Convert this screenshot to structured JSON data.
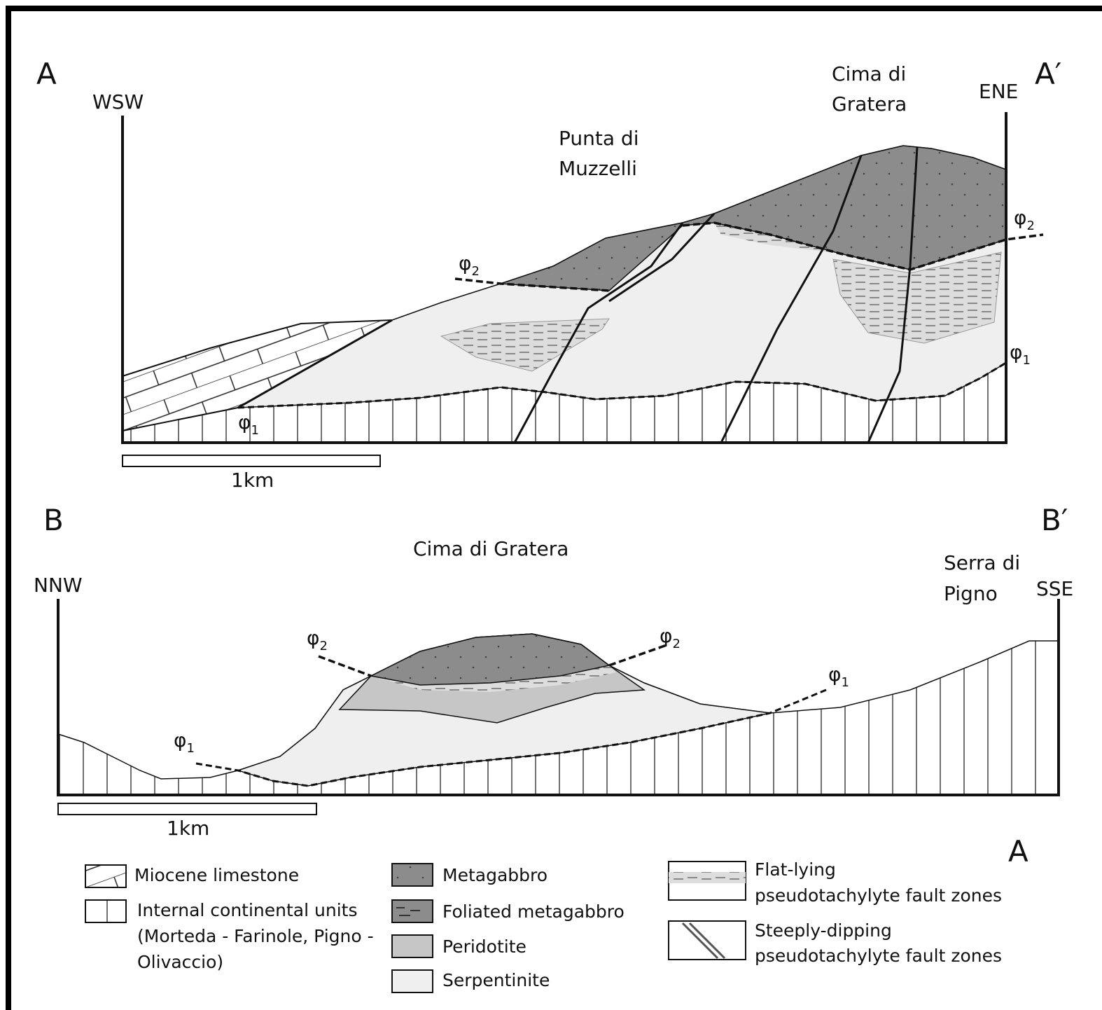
{
  "section_a": {
    "label": "A",
    "label_end": "A′",
    "left_direction": "WSW",
    "right_direction": "ENE",
    "peaks": [
      {
        "lines": [
          "Punta di",
          "Muzzelli"
        ]
      },
      {
        "lines": [
          "Cima di",
          "Gratera"
        ]
      }
    ],
    "fault_labels": [
      {
        "symbol": "φ",
        "subscript": "2"
      },
      {
        "symbol": "φ",
        "subscript": "2"
      },
      {
        "symbol": "φ",
        "subscript": "1"
      },
      {
        "symbol": "φ",
        "subscript": "1"
      }
    ],
    "scale": "1km"
  },
  "section_b": {
    "label": "B",
    "label_end": "B′",
    "left_direction": "NNW",
    "right_direction": "SSE",
    "peaks": [
      {
        "lines": [
          "Cima di Gratera"
        ]
      },
      {
        "lines": [
          "Serra di",
          "Pigno"
        ]
      }
    ],
    "fault_labels": [
      {
        "symbol": "φ",
        "subscript": "2"
      },
      {
        "symbol": "φ",
        "subscript": "2"
      },
      {
        "symbol": "φ",
        "subscript": "1"
      },
      {
        "symbol": "φ",
        "subscript": "1"
      }
    ],
    "scale": "1km"
  },
  "panel_label": "A",
  "legend": [
    {
      "lines": [
        "Miocene limestone"
      ]
    },
    {
      "lines": [
        "Internal continental units",
        "(Morteda - Farinole, Pigno -",
        "Olivaccio)"
      ]
    },
    {
      "lines": [
        "Metagabbro"
      ]
    },
    {
      "lines": [
        "Foliated metagabbro"
      ]
    },
    {
      "lines": [
        "Peridotite"
      ]
    },
    {
      "lines": [
        "Serpentinite"
      ]
    },
    {
      "lines": [
        "Flat-lying",
        "pseudotachylyte fault zones"
      ]
    },
    {
      "lines": [
        "Steeply-dipping",
        "pseudotachylyte fault zones"
      ]
    }
  ]
}
